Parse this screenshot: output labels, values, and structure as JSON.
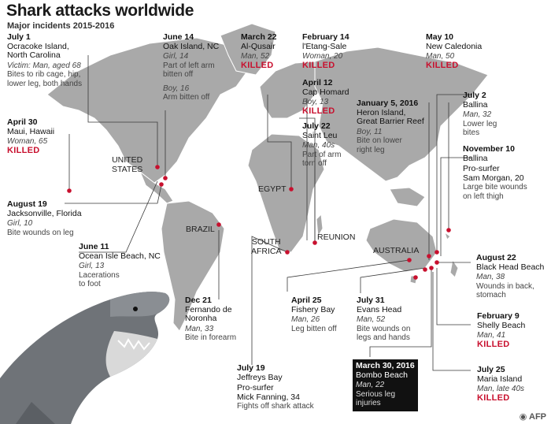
{
  "header": {
    "title": "Shark attacks worldwide",
    "subtitle": "Major incidents 2015-2016"
  },
  "countries": [
    {
      "id": "united-states",
      "label": "UNITED\nSTATES"
    },
    {
      "id": "brazil",
      "label": "BRAZIL"
    },
    {
      "id": "egypt",
      "label": "EGYPT"
    },
    {
      "id": "south-africa",
      "label": "SOUTH\nAFRICA"
    },
    {
      "id": "reunion",
      "label": "REUNION"
    },
    {
      "id": "australia",
      "label": "AUSTRALIA"
    }
  ],
  "incidents": [
    {
      "id": "ocracoke",
      "date": "July 1",
      "place": "Ocracoke Island,\nNorth Carolina",
      "victim": "Victim: Man, aged 68",
      "detail": "Bites to rib cage, hip,\nlower leg, both hands",
      "killed": ""
    },
    {
      "id": "oak-island",
      "date": "June 14",
      "place": "Oak Island, NC",
      "victim": "Girl, 14",
      "detail": "Part of left arm\nbitten off",
      "victim2": "Boy, 16",
      "detail2": "Arm bitten off",
      "killed": ""
    },
    {
      "id": "al-qusair",
      "date": "March 22",
      "place": "Al-Qusair",
      "victim": "Man, 52",
      "detail": "",
      "killed": "KILLED"
    },
    {
      "id": "etang-sale",
      "date": "February 14",
      "place": "l'Etang-Sale",
      "victim": "Woman, 20",
      "detail": "",
      "killed": "KILLED"
    },
    {
      "id": "new-caledonia",
      "date": "May 10",
      "place": "New Caledonia",
      "victim": "Man, 50",
      "detail": "",
      "killed": "KILLED"
    },
    {
      "id": "cap-homard",
      "date": "April 12",
      "place": "Cap Homard",
      "victim": "Boy, 13",
      "detail": "",
      "killed": "KILLED"
    },
    {
      "id": "heron-island",
      "date": "January 5, 2016",
      "place": "Heron Island,\nGreat Barrier Reef",
      "victim": "Boy, 11",
      "detail": "Bite on lower\nright leg",
      "killed": ""
    },
    {
      "id": "saint-leu",
      "date": "July 22",
      "place": "Saint Leu",
      "victim": "Man, 40s",
      "detail": "Part of arm\ntorn off",
      "killed": ""
    },
    {
      "id": "ballina-july",
      "date": "July 2",
      "place": "Ballina",
      "victim": "Man, 32",
      "detail": "Lower leg\nbites",
      "killed": ""
    },
    {
      "id": "maui",
      "date": "April 30",
      "place": "Maui, Hawaii",
      "victim": "Woman, 65",
      "detail": "",
      "killed": "KILLED"
    },
    {
      "id": "ballina-nov",
      "date": "November 10",
      "place": "Ballina",
      "victim": "",
      "detail": "",
      "extra": "Pro-surfer\nSam Morgan, 20",
      "detail2": "Large bite wounds\non left thigh",
      "killed": ""
    },
    {
      "id": "jacksonville",
      "date": "August 19",
      "place": "Jacksonville, Florida",
      "victim": "Girl, 10",
      "detail": "Bite wounds on leg",
      "killed": ""
    },
    {
      "id": "ocean-isle",
      "date": "June 11",
      "place": "Ocean Isle Beach, NC",
      "victim": "Girl, 13",
      "detail": "Lacerations\nto foot",
      "killed": ""
    },
    {
      "id": "black-head",
      "date": "August 22",
      "place": "Black Head Beach",
      "victim": "Man, 38",
      "detail": "Wounds in back,\nstomach",
      "killed": ""
    },
    {
      "id": "fernando",
      "date": "Dec 21",
      "place": "Fernando de\nNoronha",
      "victim": "Man, 33",
      "detail": "Bite in forearm",
      "killed": ""
    },
    {
      "id": "fishery-bay",
      "date": "April 25",
      "place": "Fishery Bay",
      "victim": "Man, 26",
      "detail": "Leg bitten off",
      "killed": ""
    },
    {
      "id": "evans-head",
      "date": "July 31",
      "place": "Evans Head",
      "victim": "Man, 52",
      "detail": "Bite wounds on\nlegs and hands",
      "killed": ""
    },
    {
      "id": "shelly-beach",
      "date": "February 9",
      "place": "Shelly Beach",
      "victim": "Man, 41",
      "detail": "",
      "killed": "KILLED"
    },
    {
      "id": "jeffreys-bay",
      "date": "July 19",
      "place": "Jeffreys Bay",
      "victim": "",
      "detail": "",
      "extra": "Pro-surfer\nMick Fanning, 34",
      "detail2": "Fights off shark attack",
      "killed": ""
    },
    {
      "id": "bombo-beach",
      "date": "March 30, 2016",
      "place": "Bombo Beach",
      "victim": "Man, 22",
      "detail": "Serious leg\ninjuries",
      "killed": ""
    },
    {
      "id": "maria-island",
      "date": "July 25",
      "place": "Maria Island",
      "victim": "Man, late 40s",
      "detail": "",
      "killed": "KILLED"
    }
  ],
  "credit": "AFP",
  "colors": {
    "land": "#a9a9a9",
    "accent": "#c8102e",
    "dark_box": "#111111"
  }
}
